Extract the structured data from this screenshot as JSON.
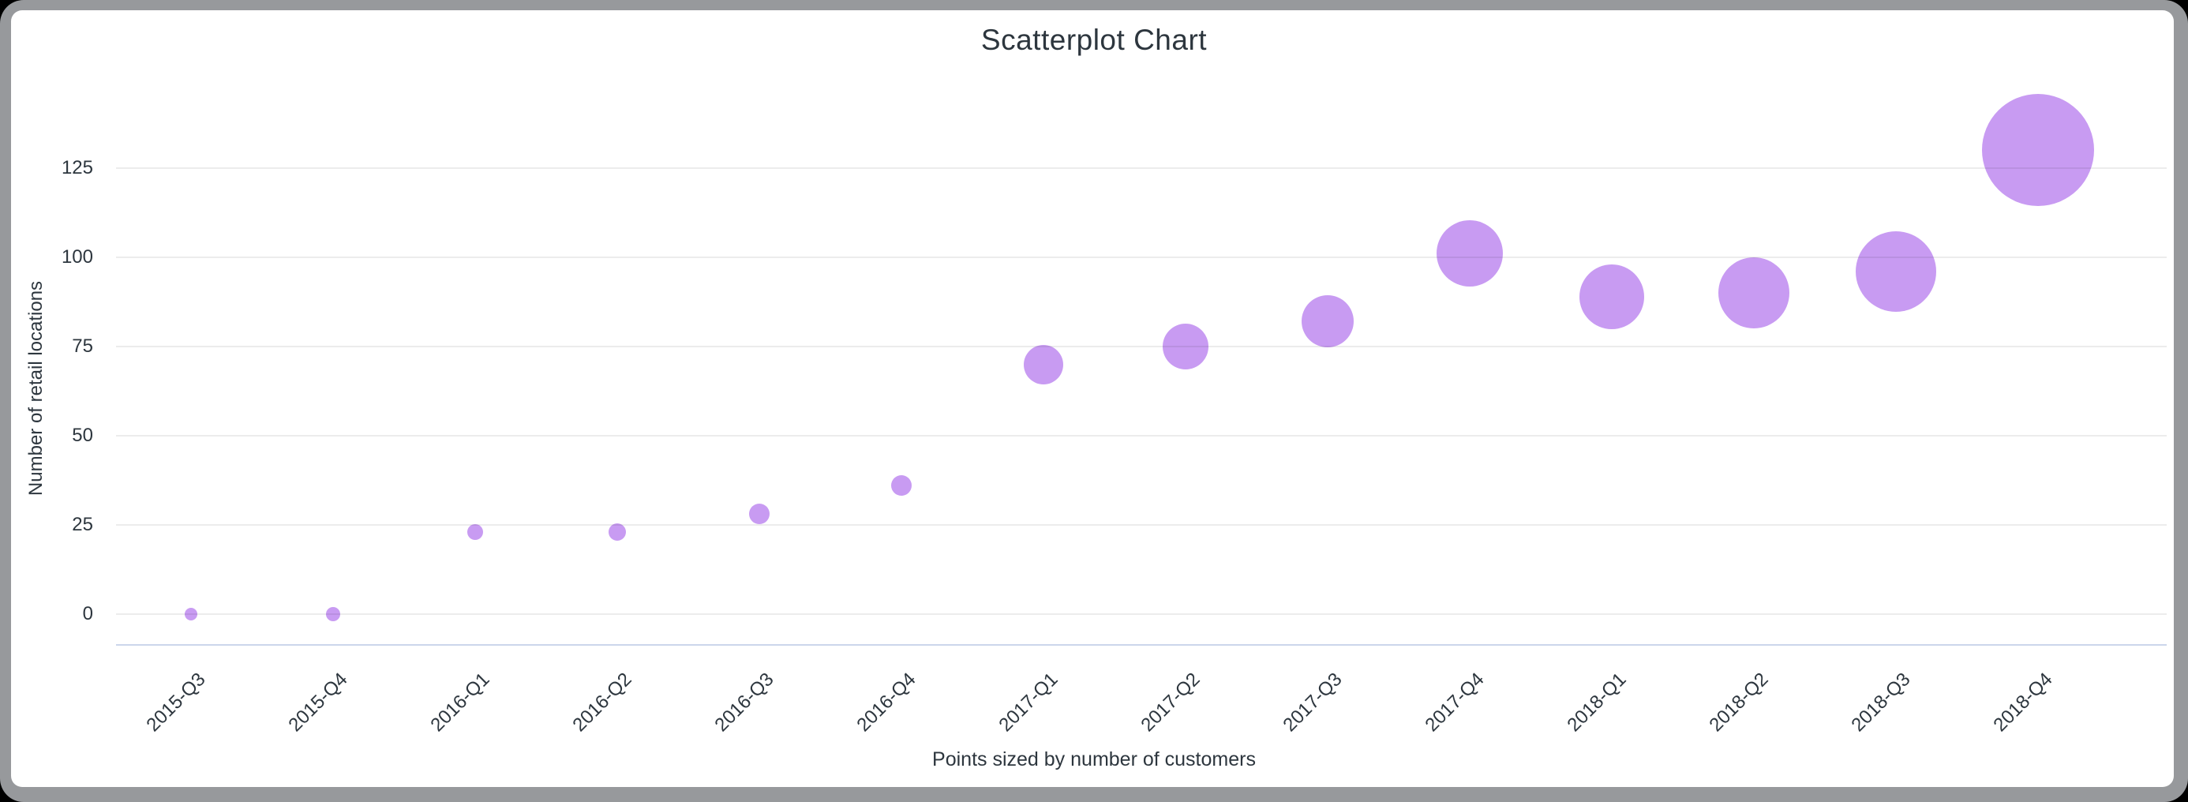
{
  "window": {
    "background_color": "#000000",
    "frame_color": "#97999c",
    "card_color": "#ffffff"
  },
  "chart_data": {
    "type": "scatter",
    "title": "Scatterplot Chart",
    "ylabel": "Number of retail locations",
    "xlabel": "",
    "caption": "Points sized by number of customers",
    "size_encoding": "Points sized by number of customers",
    "categories": [
      "2015-Q3",
      "2015-Q4",
      "2016-Q1",
      "2016-Q2",
      "2016-Q3",
      "2016-Q4",
      "2017-Q1",
      "2017-Q2",
      "2017-Q3",
      "2017-Q4",
      "2018-Q1",
      "2018-Q2",
      "2018-Q3",
      "2018-Q4"
    ],
    "series": [
      {
        "name": "Number of retail locations",
        "values": [
          0,
          0,
          23,
          23,
          28,
          36,
          70,
          75,
          82,
          101,
          89,
          90,
          96,
          130
        ],
        "point_radius_px": [
          8,
          9,
          10,
          11,
          13,
          13,
          25,
          29,
          33,
          42,
          41,
          45,
          51,
          71
        ]
      }
    ],
    "yticks": [
      0,
      25,
      50,
      75,
      100,
      125
    ],
    "ylim": [
      0,
      140
    ],
    "grid": true,
    "legend": "none",
    "x_tick_rotation_deg": -45,
    "point_color": "#c89bf2",
    "gridline_color": "#e6e6e6",
    "axis_line_color": "#ccd6eb",
    "text_color": "#2d363e"
  }
}
